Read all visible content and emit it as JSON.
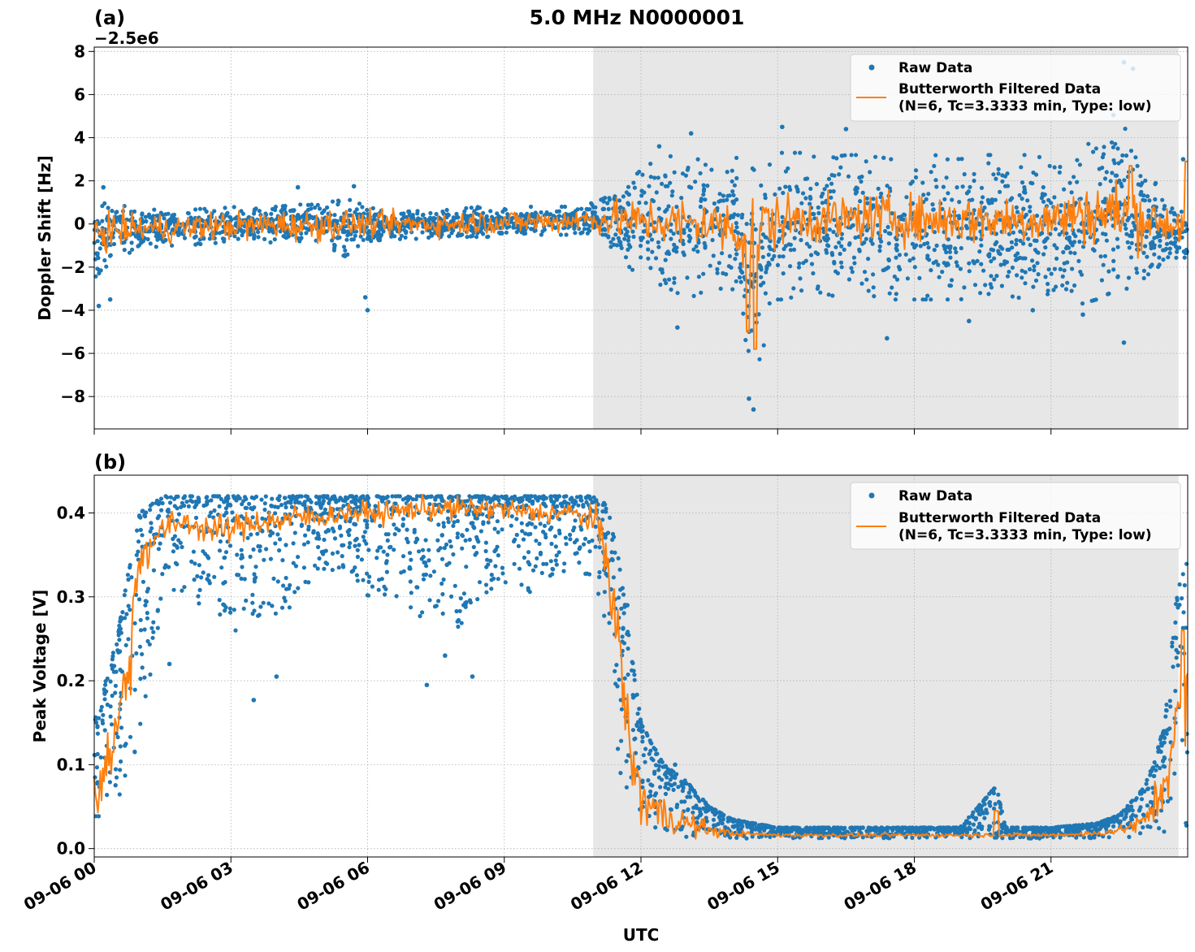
{
  "figure": {
    "title": "5.0 MHz N0000001",
    "xlabel": "UTC",
    "night_shading_color": "#e7e7e7",
    "colors": {
      "raw": "#1f77b4",
      "filtered": "#ff7f0e"
    },
    "x_tick_labels": [
      "09-06 00",
      "09-06 03",
      "09-06 06",
      "09-06 09",
      "09-06 12",
      "09-06 15",
      "09-06 18",
      "09-06 21"
    ]
  },
  "chart_data": [
    {
      "type": "scatter",
      "panel_label": "(a)",
      "ylabel": "Doppler Shift [Hz]",
      "offset_label": "−2.5e6",
      "xlim_hours_utc": [
        0,
        24
      ],
      "x_ticks_hours_utc": [
        0,
        3,
        6,
        9,
        12,
        15,
        18,
        21
      ],
      "ylim": [
        -9.5,
        8.2
      ],
      "y_ticks": [
        8,
        6,
        4,
        2,
        0,
        -2,
        -4,
        -6,
        -8
      ],
      "y_tick_labels": [
        "8",
        "6",
        "4",
        "2",
        "0",
        "−2",
        "−4",
        "−6",
        "−8"
      ],
      "shaded_span_hours_utc": [
        10.95,
        23.8
      ],
      "grid": true,
      "legend": {
        "placement": "upper right",
        "entries": [
          {
            "label": "Raw Data",
            "marker": "dot",
            "color": "#1f77b4"
          },
          {
            "label": "Butterworth Filtered Data",
            "label_line2": "(N=6, Tc=3.3333 min, Type: low)",
            "marker": "line",
            "color": "#ff7f0e"
          }
        ]
      },
      "series": [
        {
          "name": "Raw Data",
          "style": "scatter",
          "x_hours_utc": [
            0,
            0.5,
            1,
            1.5,
            2,
            2.5,
            3,
            3.5,
            4,
            4.5,
            5,
            5.5,
            6,
            6.5,
            7,
            7.5,
            8,
            8.5,
            9,
            9.5,
            10,
            10.5,
            11,
            11.5,
            12,
            12.5,
            13,
            13.5,
            14,
            14.5,
            15,
            15.5,
            16,
            16.5,
            17,
            17.5,
            18,
            18.5,
            19,
            19.5,
            20,
            20.5,
            21,
            21.5,
            22,
            22.5,
            23,
            23.5,
            24
          ],
          "upper": [
            1.0,
            0.9,
            0.7,
            0.7,
            0.7,
            0.7,
            0.8,
            0.7,
            0.8,
            0.9,
            0.9,
            1.2,
            0.8,
            0.5,
            0.6,
            0.6,
            0.7,
            0.8,
            0.8,
            0.8,
            0.8,
            0.8,
            1.0,
            1.5,
            2.5,
            3.2,
            3.0,
            3.0,
            3.2,
            2.5,
            3.3,
            3.3,
            3.0,
            3.2,
            3.2,
            3.0,
            3.0,
            3.2,
            3.0,
            3.2,
            3.2,
            3.2,
            3.0,
            3.5,
            4.0,
            6.0,
            3.5,
            0.8,
            0.8
          ],
          "lower": [
            -2.5,
            -1.5,
            -1.2,
            -1.0,
            -1.0,
            -0.9,
            -0.9,
            -0.9,
            -0.9,
            -0.8,
            -0.9,
            -1.5,
            -0.8,
            -0.7,
            -0.7,
            -0.6,
            -0.6,
            -0.6,
            -0.6,
            -0.5,
            -0.5,
            -0.5,
            -0.5,
            -1.5,
            -2.5,
            -3.0,
            -3.5,
            -3.0,
            -3.0,
            -7.0,
            -3.5,
            -3.5,
            -3.2,
            -3.5,
            -3.3,
            -3.5,
            -3.5,
            -3.5,
            -3.5,
            -3.3,
            -3.3,
            -3.5,
            -3.5,
            -3.8,
            -3.5,
            -3.0,
            -3.0,
            -2.0,
            -2.0
          ],
          "outliers": [
            {
              "x": 0.1,
              "y": -3.8
            },
            {
              "x": 0.35,
              "y": -3.5
            },
            {
              "x": 0.2,
              "y": 1.7
            },
            {
              "x": 4.47,
              "y": 1.7
            },
            {
              "x": 5.7,
              "y": 1.75
            },
            {
              "x": 6.0,
              "y": -4.0
            },
            {
              "x": 5.95,
              "y": -3.4
            },
            {
              "x": 12.4,
              "y": 3.6
            },
            {
              "x": 13.1,
              "y": 4.2
            },
            {
              "x": 12.8,
              "y": -4.8
            },
            {
              "x": 14.37,
              "y": -8.1
            },
            {
              "x": 14.47,
              "y": -8.6
            },
            {
              "x": 15.1,
              "y": 4.5
            },
            {
              "x": 16.5,
              "y": 4.4
            },
            {
              "x": 17.4,
              "y": -5.3
            },
            {
              "x": 19.2,
              "y": -4.5
            },
            {
              "x": 20.6,
              "y": -4.0
            },
            {
              "x": 21.7,
              "y": -4.2
            },
            {
              "x": 22.6,
              "y": 7.5
            },
            {
              "x": 22.8,
              "y": 7.2
            },
            {
              "x": 22.6,
              "y": -5.5
            },
            {
              "x": 23.9,
              "y": 3.0
            }
          ]
        },
        {
          "name": "Butterworth Filtered Data",
          "style": "line",
          "x_hours_utc": [
            0,
            0.5,
            1,
            1.5,
            2,
            2.5,
            3,
            3.5,
            4,
            4.5,
            5,
            5.5,
            6,
            6.5,
            7,
            7.5,
            8,
            8.5,
            9,
            9.5,
            10,
            10.5,
            11,
            11.5,
            12,
            12.5,
            13,
            13.5,
            14,
            14.5,
            15,
            15.5,
            16,
            16.5,
            17,
            17.5,
            18,
            18.5,
            19,
            19.5,
            20,
            20.5,
            21,
            21.5,
            22,
            22.5,
            23,
            23.5,
            24
          ],
          "y": [
            -0.4,
            -0.3,
            -0.2,
            -0.2,
            -0.2,
            -0.1,
            -0.1,
            -0.1,
            0.0,
            -0.1,
            0.0,
            0.0,
            0.0,
            0.0,
            0.0,
            0.0,
            0.0,
            0.1,
            0.1,
            0.1,
            0.1,
            0.2,
            0.2,
            0.2,
            0.1,
            0.1,
            0.0,
            0.0,
            -0.2,
            -0.4,
            0.2,
            0.2,
            0.2,
            0.2,
            0.3,
            0.3,
            0.2,
            0.2,
            0.2,
            0.2,
            0.2,
            0.2,
            0.2,
            0.4,
            0.5,
            0.5,
            0.3,
            0.0,
            0.0
          ],
          "amplitude": [
            0.9,
            0.7,
            0.6,
            0.6,
            0.6,
            0.6,
            0.6,
            0.6,
            0.6,
            0.6,
            0.7,
            0.6,
            0.5,
            0.5,
            0.5,
            0.5,
            0.5,
            0.5,
            0.5,
            0.5,
            0.5,
            0.5,
            0.6,
            0.8,
            0.9,
            1.0,
            1.1,
            1.0,
            1.2,
            2.5,
            1.0,
            1.0,
            1.0,
            1.0,
            1.0,
            1.0,
            1.0,
            1.0,
            1.0,
            1.0,
            1.0,
            1.0,
            1.0,
            1.1,
            1.3,
            1.5,
            1.2,
            0.8,
            1.0
          ],
          "events": [
            {
              "x": 14.35,
              "y": -5.0
            },
            {
              "x": 14.5,
              "y": -5.8
            },
            {
              "x": 22.75,
              "y": 2.7
            },
            {
              "x": 23.97,
              "y": 2.9
            }
          ]
        }
      ]
    },
    {
      "type": "scatter",
      "panel_label": "(b)",
      "ylabel": "Peak Voltage [V]",
      "xlim_hours_utc": [
        0,
        24
      ],
      "x_ticks_hours_utc": [
        0,
        3,
        6,
        9,
        12,
        15,
        18,
        21
      ],
      "ylim": [
        -0.01,
        0.445
      ],
      "y_ticks": [
        0.4,
        0.3,
        0.2,
        0.1,
        0.0
      ],
      "y_tick_labels": [
        "0.4",
        "0.3",
        "0.2",
        "0.1",
        "0.0"
      ],
      "shaded_span_hours_utc": [
        10.95,
        23.8
      ],
      "grid": true,
      "legend": {
        "placement": "upper right",
        "entries": [
          {
            "label": "Raw Data",
            "marker": "dot",
            "color": "#1f77b4"
          },
          {
            "label": "Butterworth Filtered Data",
            "label_line2": "(N=6, Tc=3.3333 min, Type: low)",
            "marker": "line",
            "color": "#ff7f0e"
          }
        ]
      },
      "series": [
        {
          "name": "Raw Data",
          "style": "scatter",
          "x_hours_utc": [
            0,
            0.25,
            0.5,
            0.75,
            1,
            1.5,
            2,
            2.5,
            3,
            3.5,
            4,
            4.5,
            5,
            5.5,
            6,
            6.5,
            7,
            7.5,
            8,
            8.5,
            9,
            9.5,
            10,
            10.5,
            11,
            11.25,
            11.5,
            11.75,
            12,
            12.5,
            13,
            13.5,
            14,
            15,
            16,
            17,
            18,
            19,
            19.8,
            20,
            21,
            22,
            22.5,
            23,
            23.25,
            23.5,
            23.75,
            24
          ],
          "upper": [
            0.15,
            0.2,
            0.25,
            0.33,
            0.4,
            0.42,
            0.42,
            0.42,
            0.42,
            0.42,
            0.42,
            0.42,
            0.42,
            0.42,
            0.42,
            0.42,
            0.42,
            0.42,
            0.42,
            0.42,
            0.42,
            0.42,
            0.42,
            0.42,
            0.42,
            0.41,
            0.35,
            0.25,
            0.15,
            0.1,
            0.08,
            0.05,
            0.035,
            0.025,
            0.025,
            0.025,
            0.025,
            0.025,
            0.075,
            0.025,
            0.025,
            0.03,
            0.04,
            0.07,
            0.1,
            0.15,
            0.3,
            0.35
          ],
          "lower": [
            0.03,
            0.04,
            0.05,
            0.08,
            0.1,
            0.3,
            0.3,
            0.28,
            0.25,
            0.27,
            0.27,
            0.3,
            0.33,
            0.33,
            0.3,
            0.3,
            0.28,
            0.27,
            0.26,
            0.3,
            0.3,
            0.3,
            0.32,
            0.33,
            0.32,
            0.25,
            0.1,
            0.05,
            0.03,
            0.015,
            0.012,
            0.012,
            0.012,
            0.012,
            0.012,
            0.012,
            0.012,
            0.012,
            0.012,
            0.012,
            0.012,
            0.012,
            0.012,
            0.015,
            0.02,
            0.02,
            0.02,
            0.02
          ],
          "outliers": [
            {
              "x": 1.65,
              "y": 0.22
            },
            {
              "x": 3.5,
              "y": 0.177
            },
            {
              "x": 4.0,
              "y": 0.205
            },
            {
              "x": 7.3,
              "y": 0.195
            },
            {
              "x": 7.7,
              "y": 0.23
            },
            {
              "x": 8.3,
              "y": 0.205
            },
            {
              "x": 11.7,
              "y": 0.29
            },
            {
              "x": 12.75,
              "y": 0.1
            }
          ]
        },
        {
          "name": "Butterworth Filtered Data",
          "style": "line",
          "x_hours_utc": [
            0,
            0.25,
            0.5,
            0.75,
            1,
            1.5,
            2,
            2.5,
            3,
            3.5,
            4,
            4.5,
            5,
            5.5,
            6,
            6.5,
            7,
            7.5,
            8,
            8.5,
            9,
            9.5,
            10,
            10.5,
            11,
            11.25,
            11.5,
            11.75,
            12,
            12.5,
            13,
            13.5,
            14,
            15,
            16,
            17,
            18,
            19,
            19.8,
            20,
            21,
            22,
            22.5,
            23,
            23.25,
            23.5,
            23.75,
            24
          ],
          "y": [
            0.06,
            0.1,
            0.14,
            0.22,
            0.35,
            0.38,
            0.39,
            0.38,
            0.38,
            0.39,
            0.39,
            0.395,
            0.395,
            0.4,
            0.4,
            0.4,
            0.405,
            0.405,
            0.405,
            0.405,
            0.405,
            0.4,
            0.4,
            0.4,
            0.39,
            0.35,
            0.25,
            0.12,
            0.06,
            0.04,
            0.03,
            0.022,
            0.018,
            0.016,
            0.016,
            0.016,
            0.016,
            0.016,
            0.016,
            0.016,
            0.016,
            0.018,
            0.022,
            0.03,
            0.05,
            0.08,
            0.15,
            0.18
          ],
          "amplitude": [
            0.03,
            0.04,
            0.04,
            0.05,
            0.03,
            0.015,
            0.015,
            0.015,
            0.015,
            0.015,
            0.015,
            0.015,
            0.012,
            0.012,
            0.012,
            0.012,
            0.012,
            0.012,
            0.012,
            0.012,
            0.012,
            0.012,
            0.012,
            0.012,
            0.015,
            0.03,
            0.04,
            0.04,
            0.03,
            0.02,
            0.015,
            0.008,
            0.003,
            0.002,
            0.002,
            0.002,
            0.002,
            0.002,
            0.002,
            0.002,
            0.002,
            0.003,
            0.005,
            0.01,
            0.02,
            0.03,
            0.04,
            0.04
          ],
          "events": [
            {
              "x": 19.8,
              "y": 0.045
            },
            {
              "x": 23.9,
              "y": 0.26
            }
          ]
        }
      ]
    }
  ]
}
